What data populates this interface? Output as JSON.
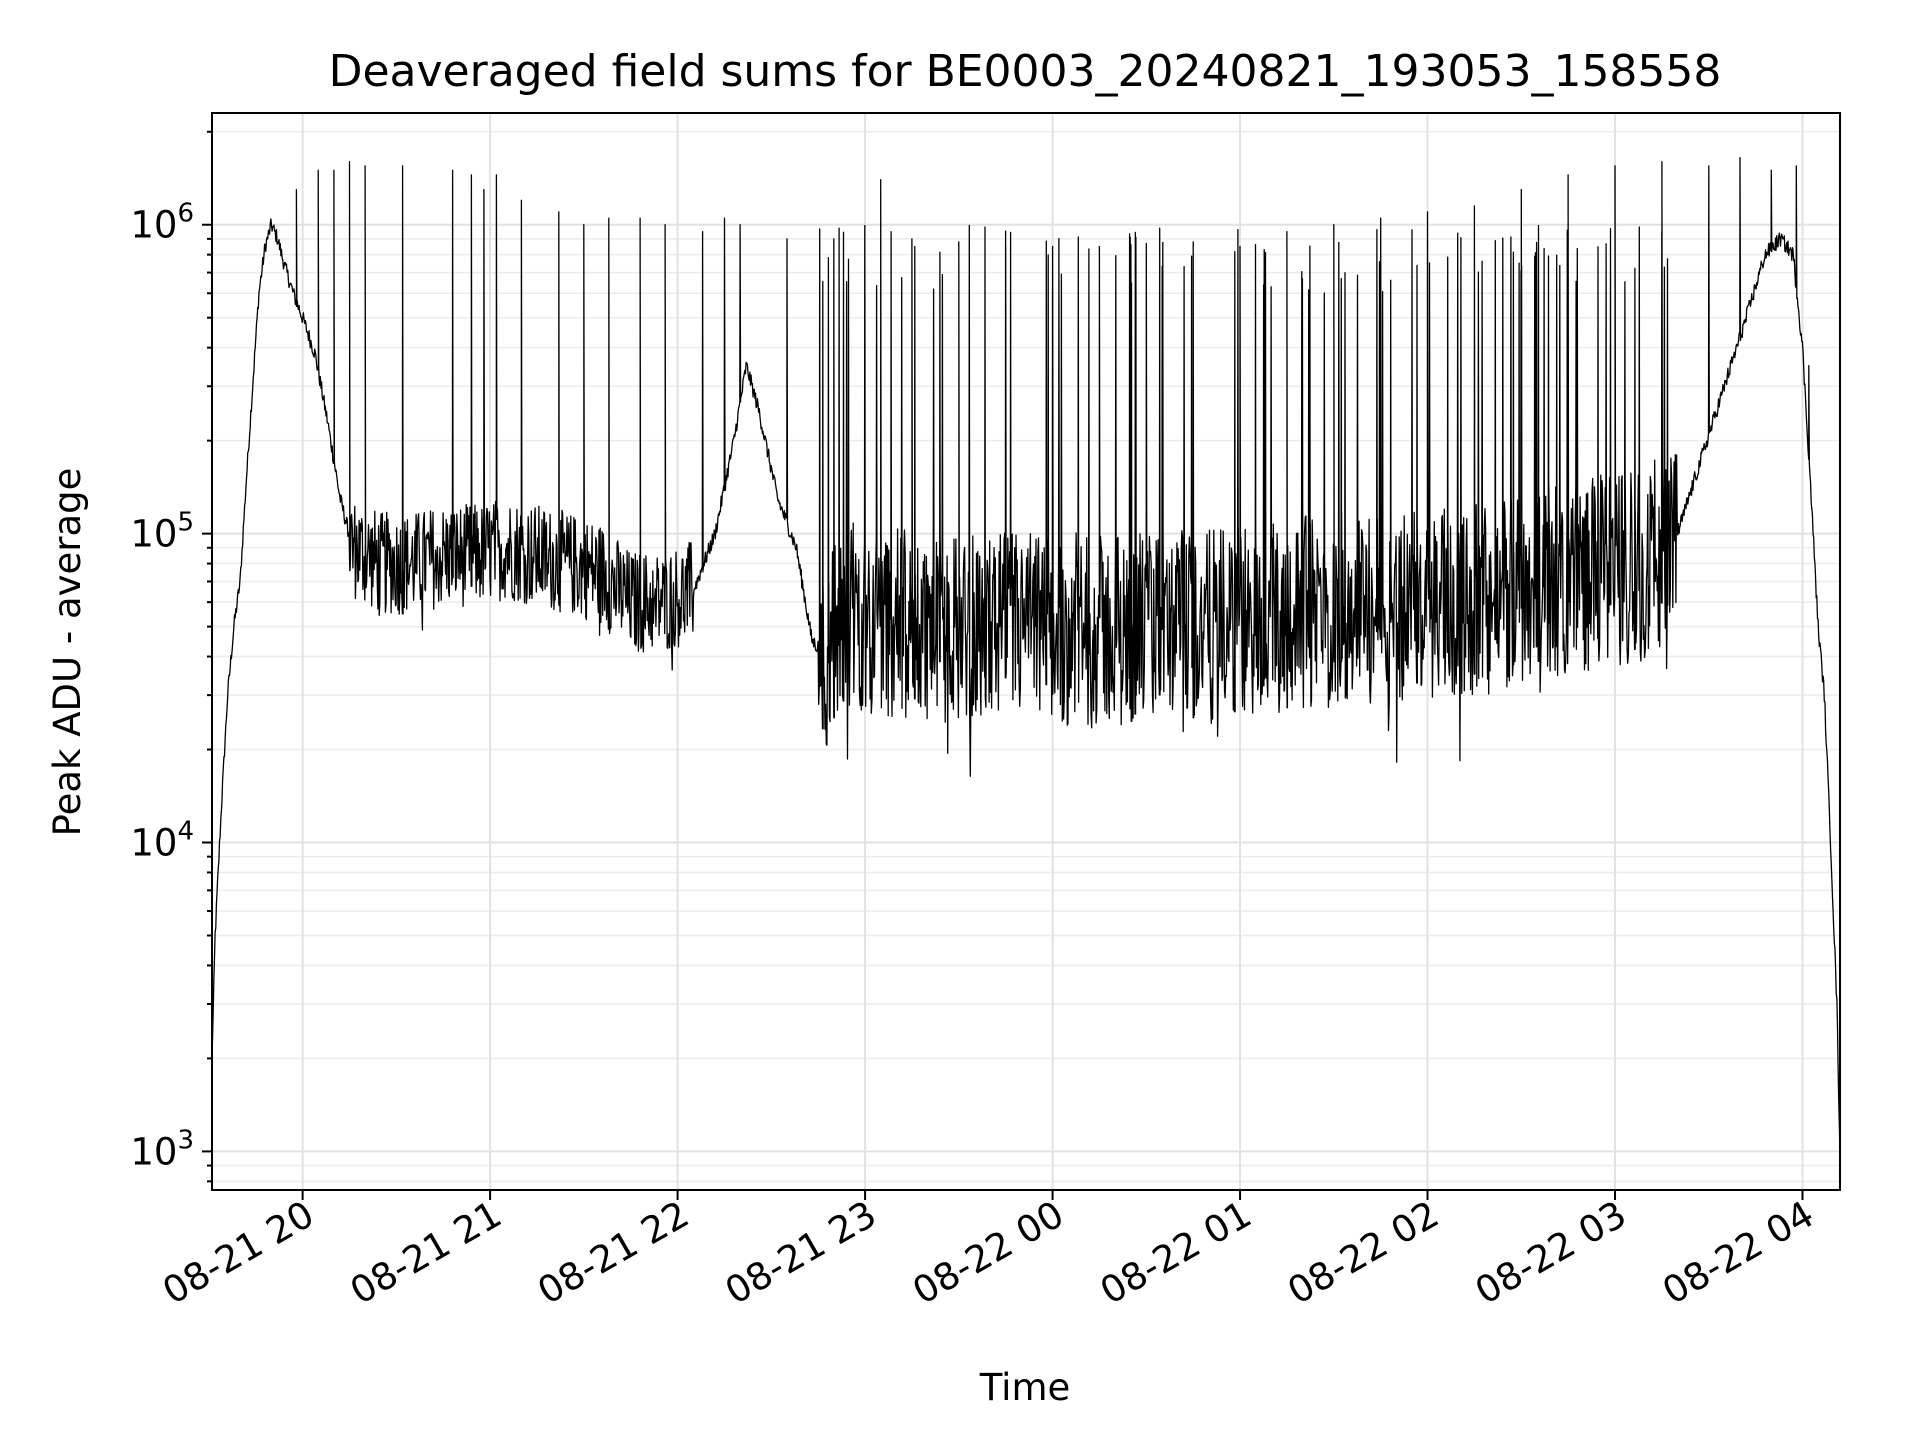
{
  "chart_data": {
    "type": "line",
    "title": "Deaveraged field sums for BE0003_20240821_193053_158558",
    "xlabel": "Time",
    "ylabel": "Peak ADU - average",
    "yscale": "log",
    "xlim": [
      "2024-08-21 19:31",
      "2024-08-22 04:12"
    ],
    "ylim": [
      750,
      2300000
    ],
    "x_ticks": [
      "08-21 20",
      "08-21 21",
      "08-21 22",
      "08-21 23",
      "08-22 00",
      "08-22 01",
      "08-22 02",
      "08-22 03",
      "08-22 04"
    ],
    "y_ticks": [
      {
        "base": "10",
        "exp": "3",
        "value": 1000
      },
      {
        "base": "10",
        "exp": "4",
        "value": 10000
      },
      {
        "base": "10",
        "exp": "5",
        "value": 100000
      },
      {
        "base": "10",
        "exp": "6",
        "value": 1000000
      }
    ],
    "grid": true,
    "line_color": "#000000",
    "series": [
      {
        "baseline": [
          [
            "2024-08-21 19:31",
            2000
          ],
          [
            "2024-08-21 19:32",
            5000
          ],
          [
            "2024-08-21 19:34",
            13000
          ],
          [
            "2024-08-21 19:36",
            30000
          ],
          [
            "2024-08-21 19:38",
            50000
          ],
          [
            "2024-08-21 19:40",
            70000
          ],
          [
            "2024-08-21 19:42",
            150000
          ],
          [
            "2024-08-21 19:44",
            300000
          ],
          [
            "2024-08-21 19:46",
            600000
          ],
          [
            "2024-08-21 19:48",
            850000
          ],
          [
            "2024-08-21 19:50",
            1000000
          ],
          [
            "2024-08-21 19:52",
            900000
          ],
          [
            "2024-08-21 19:54",
            750000
          ],
          [
            "2024-08-21 19:57",
            600000
          ],
          [
            "2024-08-21 20:00",
            500000
          ],
          [
            "2024-08-21 20:04",
            380000
          ],
          [
            "2024-08-21 20:08",
            230000
          ],
          [
            "2024-08-21 20:12",
            130000
          ],
          [
            "2024-08-21 20:16",
            90000
          ],
          [
            "2024-08-21 20:25",
            80000
          ],
          [
            "2024-08-21 20:35",
            80000
          ],
          [
            "2024-08-21 20:45",
            85000
          ],
          [
            "2024-08-21 20:55",
            85000
          ],
          [
            "2024-08-21 21:05",
            90000
          ],
          [
            "2024-08-21 21:15",
            85000
          ],
          [
            "2024-08-21 21:25",
            80000
          ],
          [
            "2024-08-21 21:35",
            75000
          ],
          [
            "2024-08-21 21:45",
            60000
          ],
          [
            "2024-08-21 21:55",
            60000
          ],
          [
            "2024-08-21 22:05",
            65000
          ],
          [
            "2024-08-21 22:12",
            100000
          ],
          [
            "2024-08-21 22:18",
            200000
          ],
          [
            "2024-08-21 22:22",
            350000
          ],
          [
            "2024-08-21 22:26",
            250000
          ],
          [
            "2024-08-21 22:32",
            130000
          ],
          [
            "2024-08-21 22:38",
            90000
          ],
          [
            "2024-08-21 22:43",
            45000
          ],
          [
            "2024-08-21 22:48",
            40000
          ],
          [
            "2024-08-21 22:55",
            55000
          ],
          [
            "2024-08-21 23:15",
            50000
          ],
          [
            "2024-08-21 23:35",
            50000
          ],
          [
            "2024-08-21 23:55",
            50000
          ],
          [
            "2024-08-22 00:15",
            48000
          ],
          [
            "2024-08-22 00:35",
            50000
          ],
          [
            "2024-08-22 00:55",
            50000
          ],
          [
            "2024-08-22 01:15",
            55000
          ],
          [
            "2024-08-22 01:35",
            58000
          ],
          [
            "2024-08-22 01:55",
            58000
          ],
          [
            "2024-08-22 02:15",
            60000
          ],
          [
            "2024-08-22 02:35",
            70000
          ],
          [
            "2024-08-22 02:55",
            75000
          ],
          [
            "2024-08-22 03:10",
            80000
          ],
          [
            "2024-08-22 03:20",
            100000
          ],
          [
            "2024-08-22 03:28",
            180000
          ],
          [
            "2024-08-22 03:35",
            300000
          ],
          [
            "2024-08-22 03:42",
            500000
          ],
          [
            "2024-08-22 03:48",
            800000
          ],
          [
            "2024-08-22 03:53",
            900000
          ],
          [
            "2024-08-22 03:57",
            800000
          ],
          [
            "2024-08-22 04:00",
            400000
          ],
          [
            "2024-08-22 04:03",
            120000
          ],
          [
            "2024-08-22 04:05",
            50000
          ],
          [
            "2024-08-22 04:07",
            30000
          ],
          [
            "2024-08-22 04:09",
            10000
          ],
          [
            "2024-08-22 04:11",
            3000
          ],
          [
            "2024-08-22 04:12",
            1000
          ]
        ],
        "noise_bands": [
          {
            "from": "2024-08-21 20:15",
            "to": "2024-08-21 22:05",
            "low": 55000,
            "high": 130000
          },
          {
            "from": "2024-08-21 22:45",
            "to": "2024-08-22 03:20",
            "low": 30000,
            "high": 150000
          }
        ],
        "spikes": [
          [
            "2024-08-21 19:58",
            1300000
          ],
          [
            "2024-08-21 20:05",
            1500000
          ],
          [
            "2024-08-21 20:10",
            1500000
          ],
          [
            "2024-08-21 20:15",
            1600000
          ],
          [
            "2024-08-21 20:20",
            1550000
          ],
          [
            "2024-08-21 20:32",
            1550000
          ],
          [
            "2024-08-21 20:48",
            1500000
          ],
          [
            "2024-08-21 20:54",
            1450000
          ],
          [
            "2024-08-21 20:58",
            1300000
          ],
          [
            "2024-08-21 21:02",
            1450000
          ],
          [
            "2024-08-21 21:10",
            1200000
          ],
          [
            "2024-08-21 21:22",
            1100000
          ],
          [
            "2024-08-21 21:30",
            1000000
          ],
          [
            "2024-08-21 21:38",
            1050000
          ],
          [
            "2024-08-21 21:48",
            1050000
          ],
          [
            "2024-08-21 21:56",
            1000000
          ],
          [
            "2024-08-21 22:08",
            950000
          ],
          [
            "2024-08-21 22:15",
            1050000
          ],
          [
            "2024-08-21 22:20",
            1000000
          ],
          [
            "2024-08-21 22:35",
            900000
          ],
          [
            "2024-08-21 22:50",
            900000
          ],
          [
            "2024-08-21 23:05",
            1400000
          ],
          [
            "2024-08-21 23:15",
            900000
          ],
          [
            "2024-08-21 23:30",
            880000
          ],
          [
            "2024-08-21 23:45",
            850000
          ],
          [
            "2024-08-22 00:00",
            850000
          ],
          [
            "2024-08-22 00:15",
            850000
          ],
          [
            "2024-08-22 00:30",
            870000
          ],
          [
            "2024-08-22 00:45",
            880000
          ],
          [
            "2024-08-22 01:00",
            850000
          ],
          [
            "2024-08-22 01:15",
            950000
          ],
          [
            "2024-08-22 01:30",
            1000000
          ],
          [
            "2024-08-22 01:45",
            1050000
          ],
          [
            "2024-08-22 02:00",
            1100000
          ],
          [
            "2024-08-22 02:15",
            1150000
          ],
          [
            "2024-08-22 02:30",
            1300000
          ],
          [
            "2024-08-22 02:45",
            1450000
          ],
          [
            "2024-08-22 03:00",
            1550000
          ],
          [
            "2024-08-22 03:15",
            1600000
          ],
          [
            "2024-08-22 03:30",
            1550000
          ],
          [
            "2024-08-22 03:40",
            1650000
          ],
          [
            "2024-08-22 03:50",
            1500000
          ],
          [
            "2024-08-22 03:58",
            1550000
          ],
          [
            "2024-08-22 04:02",
            350000
          ]
        ]
      }
    ]
  }
}
